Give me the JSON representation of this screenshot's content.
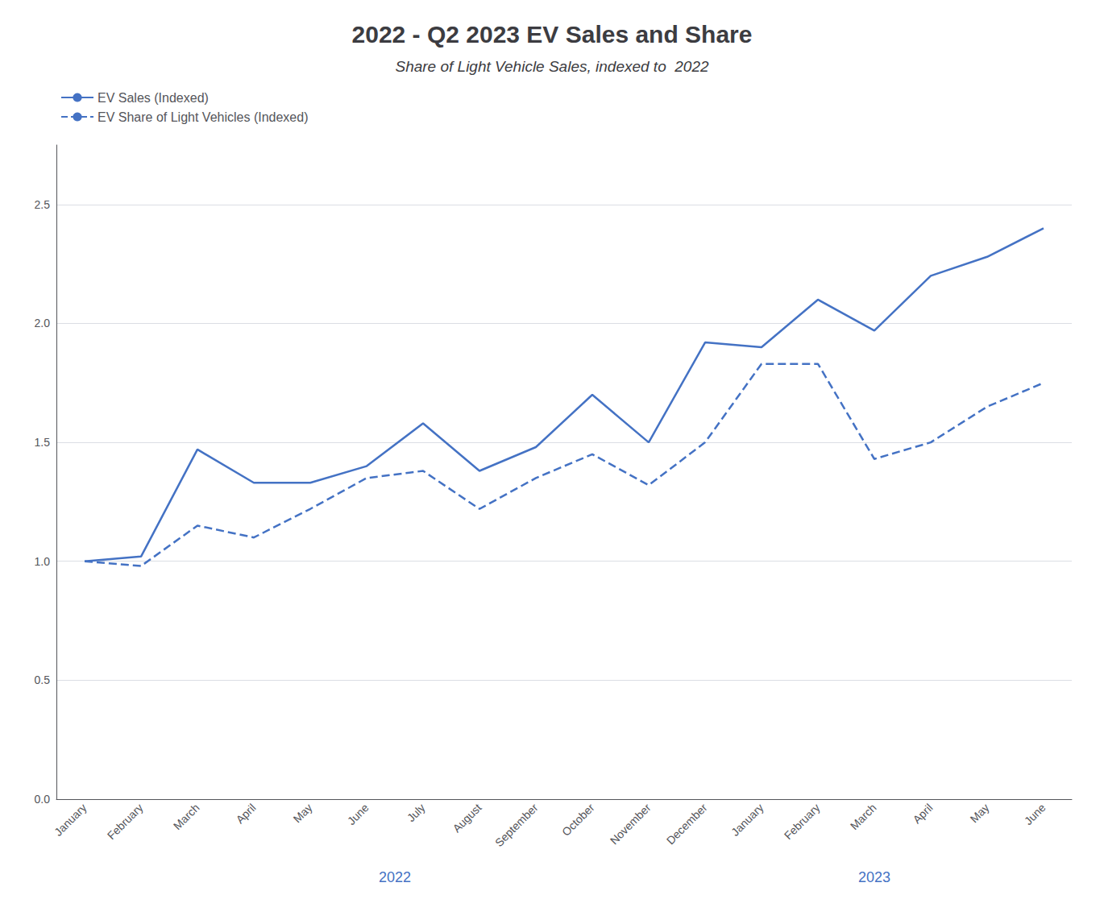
{
  "chart_data": {
    "type": "line",
    "title": "2022 - Q2 2023 EV Sales and Share",
    "subtitle": "Share of Light Vehicle Sales, indexed to  2022",
    "categories": [
      "January",
      "February",
      "March",
      "April",
      "May",
      "June",
      "July",
      "August",
      "September",
      "October",
      "November",
      "December",
      "January",
      "February",
      "March",
      "April",
      "May",
      "June"
    ],
    "series": [
      {
        "name": "EV Sales (Indexed)",
        "color": "#4472C4",
        "line_style": "solid",
        "values": [
          1.0,
          1.02,
          1.47,
          1.33,
          1.33,
          1.4,
          1.58,
          1.38,
          1.48,
          1.7,
          1.5,
          1.92,
          1.9,
          2.1,
          1.97,
          2.2,
          2.28,
          2.4
        ]
      },
      {
        "name": "EV Share of Light Vehicles (Indexed)",
        "color": "#4472C4",
        "line_style": "dashed",
        "values": [
          1.0,
          0.98,
          1.15,
          1.1,
          1.22,
          1.35,
          1.38,
          1.22,
          1.35,
          1.45,
          1.32,
          1.5,
          1.83,
          1.83,
          1.43,
          1.5,
          1.65,
          1.75
        ]
      }
    ],
    "ylim": [
      0.0,
      2.75
    ],
    "yticks": [
      {
        "value": 0.0,
        "label": "0.0"
      },
      0.5,
      {
        "value": 1.0,
        "label": "1.0"
      },
      1.5,
      {
        "value": 2.0,
        "label": "2.0"
      },
      2.5
    ],
    "grid": true,
    "legend": "upper left",
    "annotations": [
      {
        "text": "2022",
        "x": 5.5
      },
      {
        "text": "2023",
        "x": 14.0
      }
    ]
  }
}
